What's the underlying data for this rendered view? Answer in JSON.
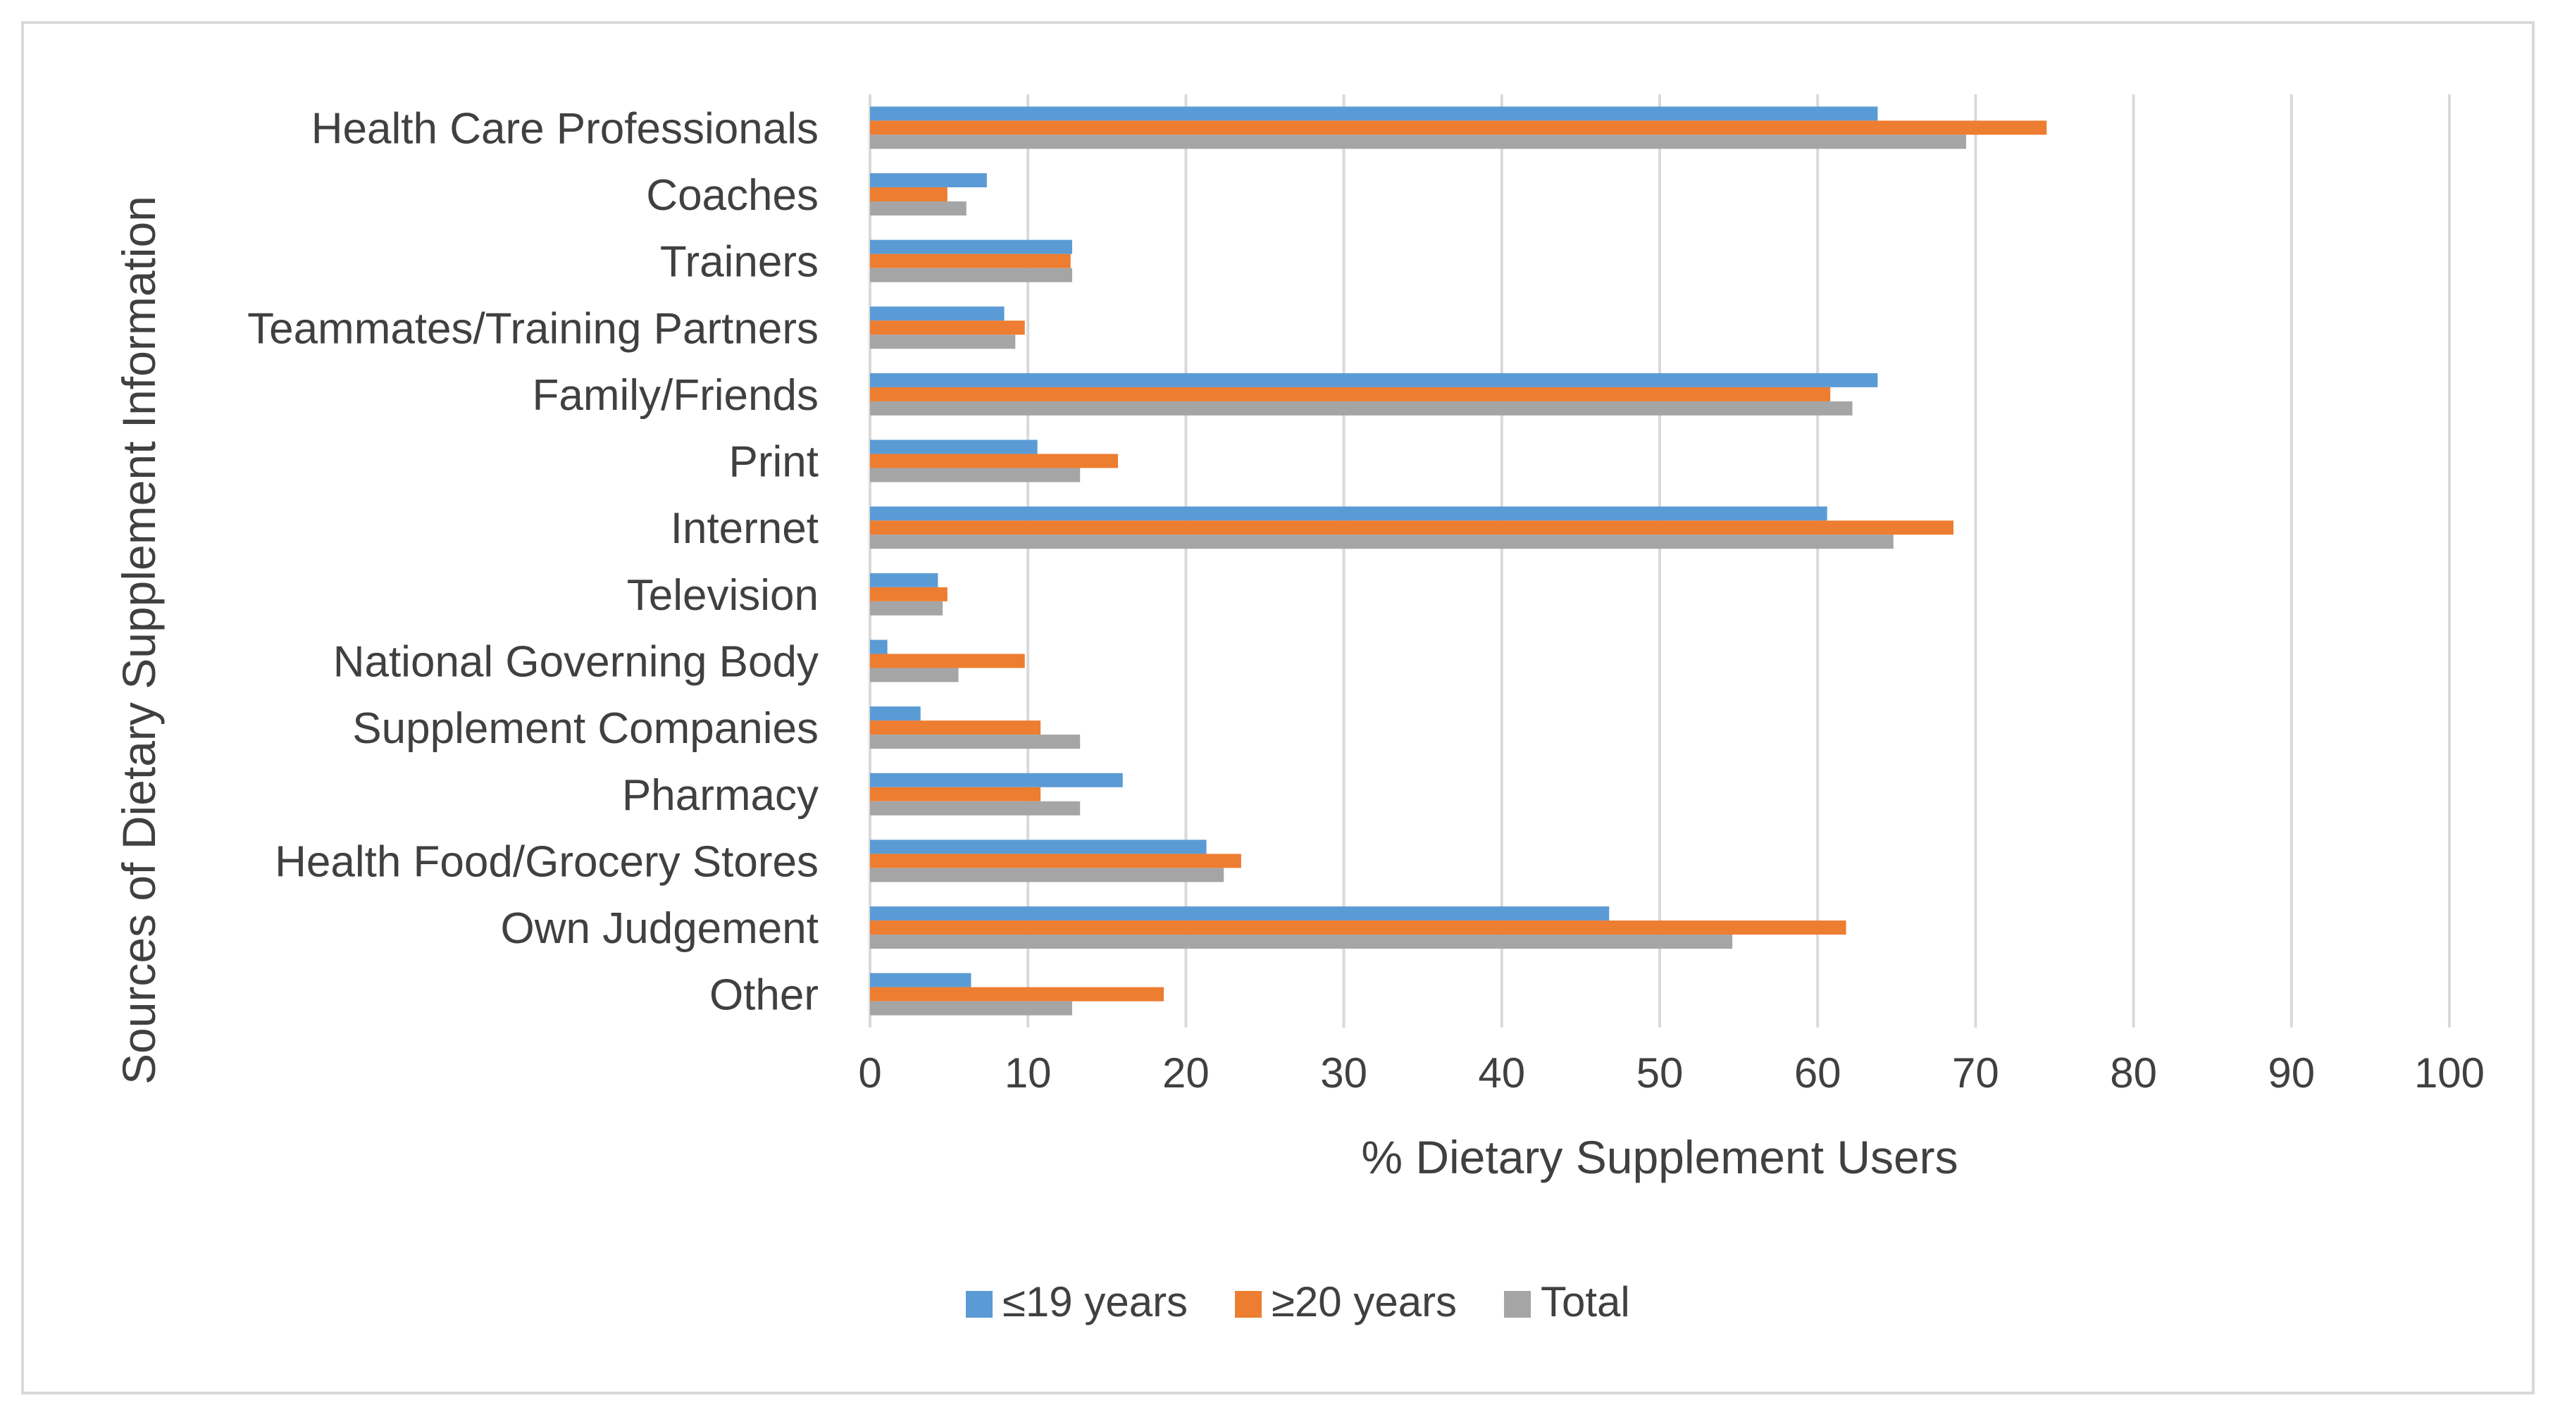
{
  "chart_data": {
    "type": "bar",
    "orientation": "horizontal",
    "title": "",
    "xlabel": "% Dietary Supplement Users",
    "ylabel": "Sources of Dietary Supplement Information",
    "xlim": [
      0,
      100
    ],
    "xticks": [
      "0",
      "10",
      "20",
      "30",
      "40",
      "50",
      "60",
      "70",
      "80",
      "90",
      "100"
    ],
    "grid": "vertical",
    "legend_position": "bottom",
    "categories": [
      "Health Care Professionals",
      "Coaches",
      "Trainers",
      "Teammates/Training Partners",
      "Family/Friends",
      "Print",
      "Internet",
      "Television",
      "National Governing Body",
      "Supplement Companies",
      "Pharmacy",
      "Health Food/Grocery Stores",
      "Own Judgement",
      "Other"
    ],
    "series": [
      {
        "name": "≤19 years",
        "color": "#5b9bd5",
        "values": [
          63.8,
          7.4,
          12.8,
          8.5,
          63.8,
          10.6,
          60.6,
          4.3,
          1.1,
          3.2,
          16.0,
          21.3,
          46.8,
          6.4
        ]
      },
      {
        "name": "≥20 years",
        "color": "#ed7d31",
        "values": [
          74.5,
          4.9,
          12.7,
          9.8,
          60.8,
          15.7,
          68.6,
          4.9,
          9.8,
          10.8,
          10.8,
          23.5,
          61.8,
          18.6
        ]
      },
      {
        "name": "Total",
        "color": "#a5a5a5",
        "values": [
          69.4,
          6.1,
          12.8,
          9.2,
          62.2,
          13.3,
          64.8,
          4.6,
          5.6,
          13.3,
          13.3,
          22.4,
          54.6,
          12.8
        ]
      }
    ]
  }
}
